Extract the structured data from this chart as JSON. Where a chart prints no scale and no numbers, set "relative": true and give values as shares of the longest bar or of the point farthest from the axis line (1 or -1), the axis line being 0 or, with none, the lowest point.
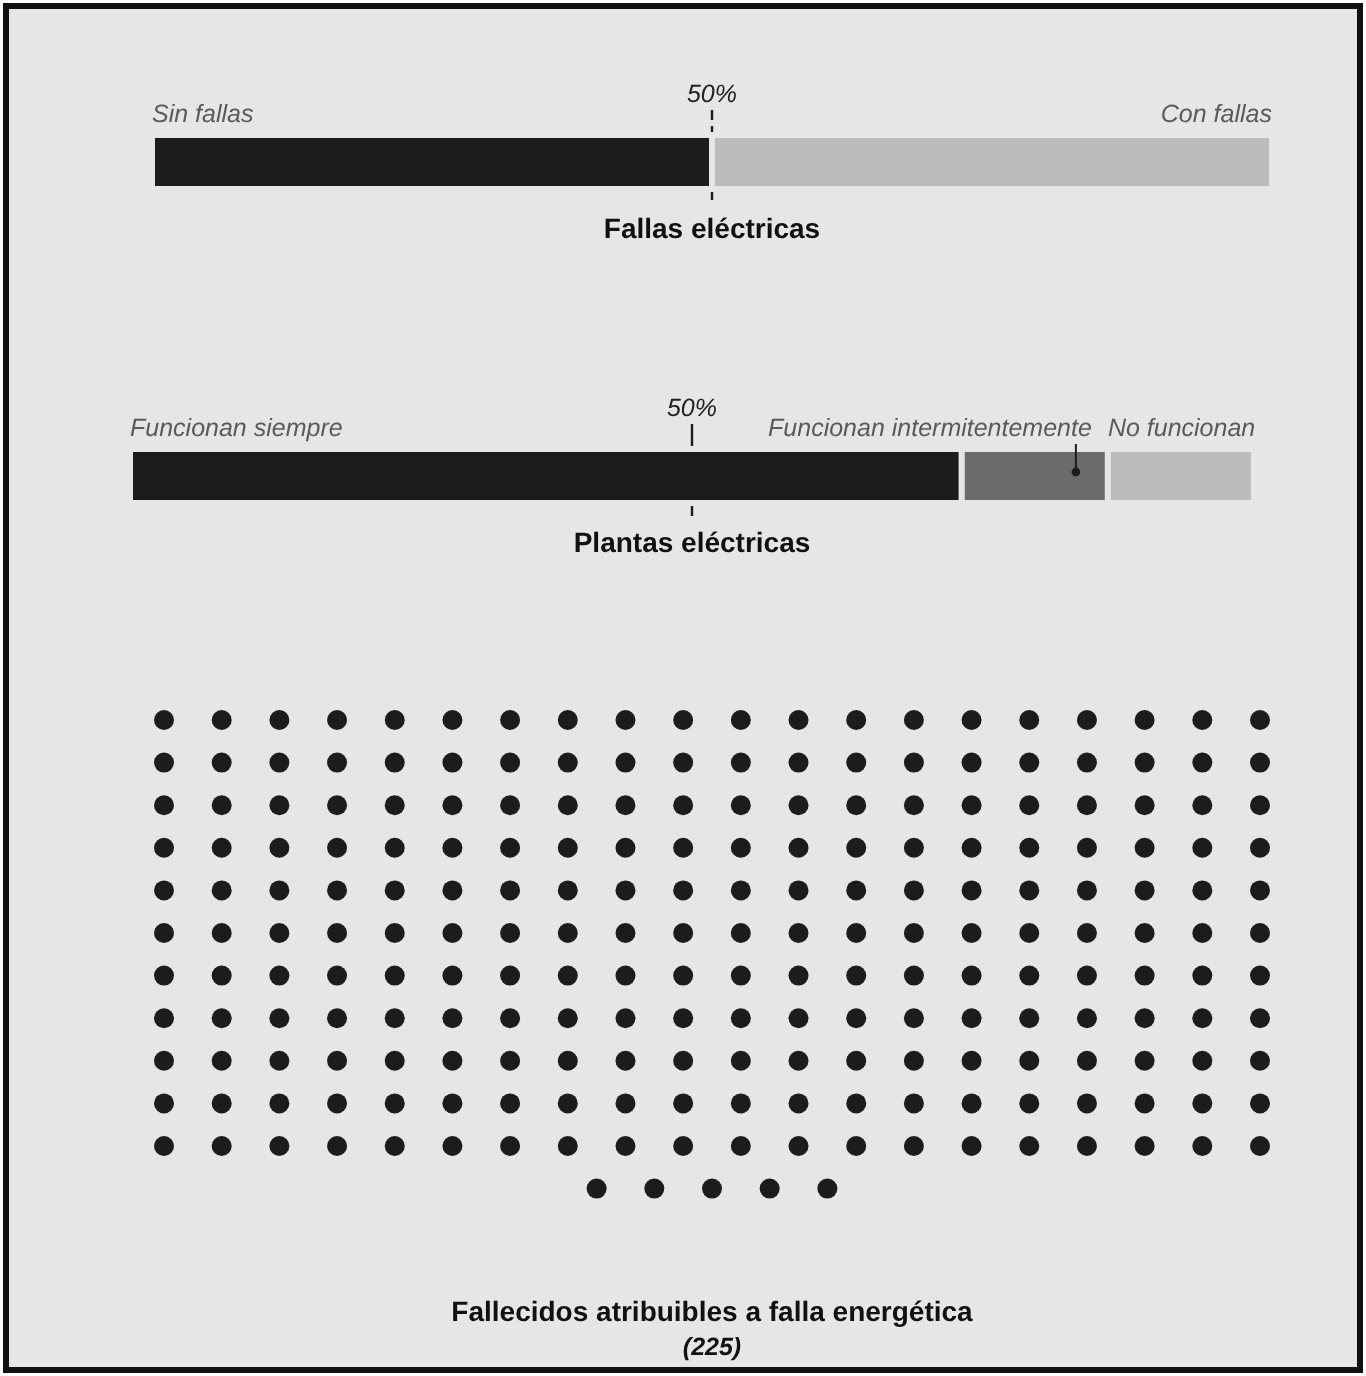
{
  "chart_data": [
    {
      "type": "bar",
      "orientation": "horizontal",
      "stacked": true,
      "relative": true,
      "title": "Fallas eléctricas",
      "categories": [
        null
      ],
      "series": [
        {
          "name": "Sin fallas",
          "color": "#1c1c1c",
          "values": [
            0.5
          ]
        },
        {
          "name": "Con fallas",
          "color": "#bcbcbc",
          "values": [
            0.5
          ]
        }
      ],
      "ref_lines": [
        {
          "axis": "x",
          "value": 0.5,
          "label": "50%",
          "line_style": "dashed",
          "color": "#1c1c1c"
        }
      ]
    },
    {
      "type": "bar",
      "orientation": "horizontal",
      "stacked": true,
      "relative": true,
      "title": "Plantas eléctricas",
      "categories": [
        null
      ],
      "series": [
        {
          "name": "Funcionan siempre",
          "color": "#1c1c1c",
          "values": [
            0.74
          ]
        },
        {
          "name": "Funcionan intermitentemente",
          "color": "#6b6b6b",
          "values": [
            0.13
          ]
        },
        {
          "name": "No funcionan",
          "color": "#bcbcbc",
          "values": [
            0.13
          ]
        }
      ],
      "ref_lines": [
        {
          "axis": "x",
          "value": 0.5,
          "label": "50%",
          "line_style": "solid",
          "color": "#1c1c1c"
        }
      ]
    },
    {
      "type": "other",
      "title": "Fallecidos atribuibles a falla energética",
      "values": [
        225
      ],
      "value_labels": [
        "(225)"
      ],
      "color": "#1c1c1c"
    }
  ]
}
